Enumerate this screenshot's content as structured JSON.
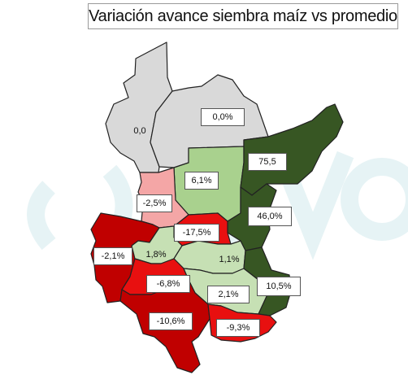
{
  "title": "Variación avance siembra maíz vs promedio",
  "colors": {
    "background": "#ffffff",
    "no_change": "#d9d9d9",
    "light_positive": "#c6e0b4",
    "medium_positive": "#a9d18e",
    "strong_positive": "#375623",
    "light_negative": "#f4a6a6",
    "medium_negative": "#e81010",
    "strong_negative": "#c00000",
    "watermark": "#e8f4f6"
  },
  "watermark_text": "()GVO",
  "regions": [
    {
      "id": "nw",
      "value": "0,0"
    },
    {
      "id": "ne",
      "value": "0,0%"
    },
    {
      "id": "center-north",
      "value": "6,1%"
    },
    {
      "id": "east-north",
      "value": "75,5"
    },
    {
      "id": "west-upper",
      "value": "-2,5%"
    },
    {
      "id": "center-mid",
      "value": "-17,5%"
    },
    {
      "id": "east-mid",
      "value": "46,0%"
    },
    {
      "id": "west-far",
      "value": "-2,1%"
    },
    {
      "id": "west-inner",
      "value": "1,8%"
    },
    {
      "id": "center-south",
      "value": "1,1%"
    },
    {
      "id": "southwest",
      "value": "-6,8%"
    },
    {
      "id": "south-center",
      "value": "2,1%"
    },
    {
      "id": "southeast",
      "value": "10,5%"
    },
    {
      "id": "south",
      "value": "-10,6%"
    },
    {
      "id": "south-east",
      "value": "-9,3%"
    }
  ]
}
